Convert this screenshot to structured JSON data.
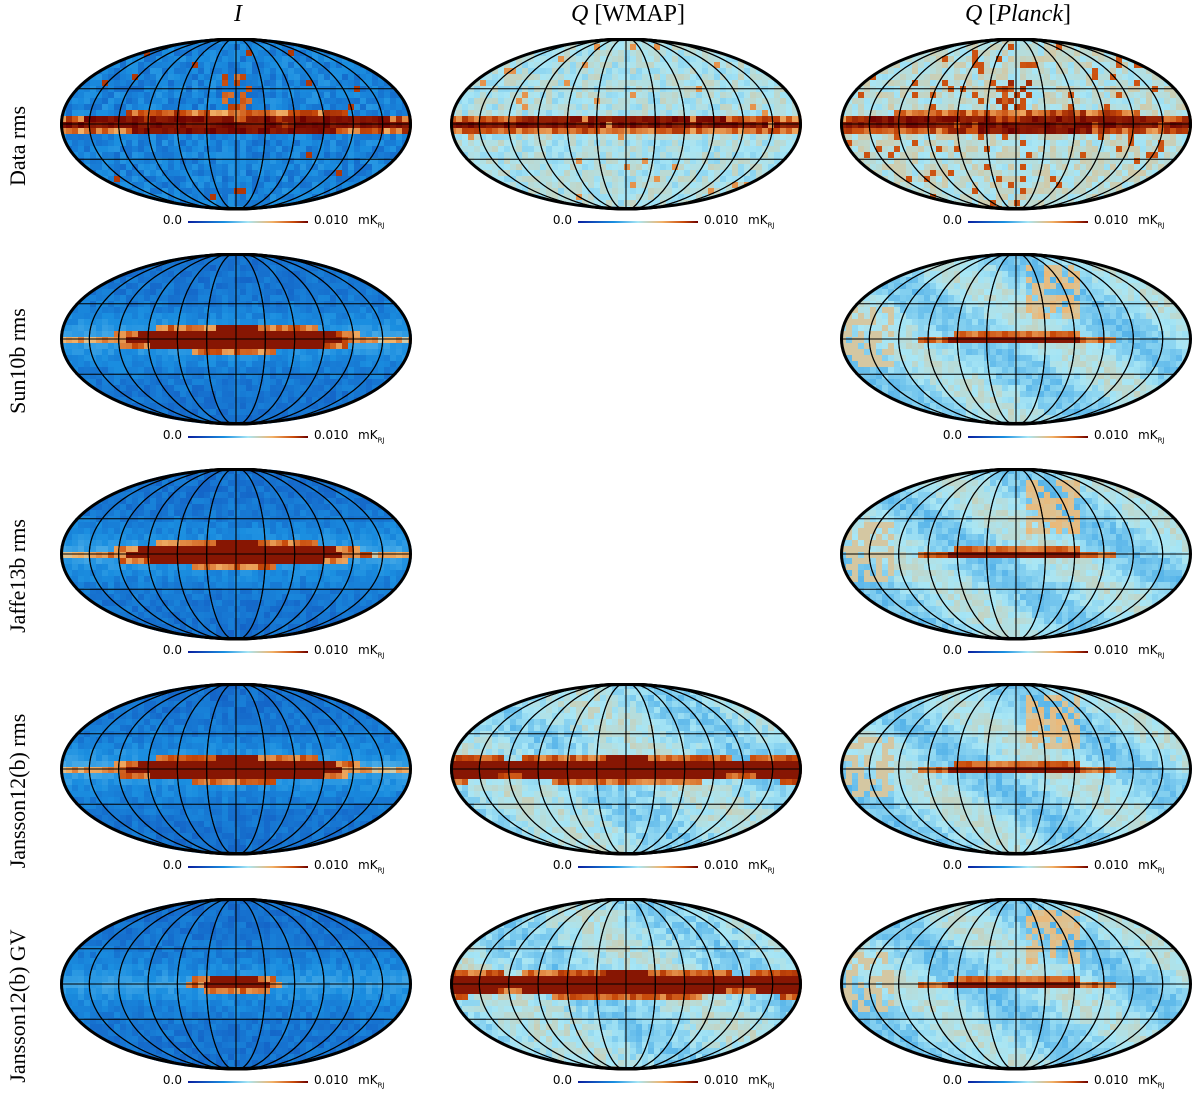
{
  "columns": [
    {
      "pre": "",
      "italic": "I",
      "post": ""
    },
    {
      "pre": "",
      "italic": "Q",
      "post": " [WMAP]"
    },
    {
      "pre": "",
      "italic": "Q",
      "post_a": " [",
      "italic2": "Planck",
      "post_b": "]"
    }
  ],
  "rows": [
    {
      "label": "Data rms"
    },
    {
      "label": "Sun10b rms"
    },
    {
      "label": "Jaffe13b rms"
    },
    {
      "label": "Jansson12(b) rms"
    },
    {
      "label": "Jansson12(b) GV"
    }
  ],
  "colorbar": {
    "min": "0.0",
    "max": "0.010",
    "unit": "mK",
    "unit_sub": "RJ"
  },
  "colormap": [
    "#0a1f9e",
    "#1a8ee0",
    "#a8e6f5",
    "#f2b36a",
    "#c84a0a",
    "#6b0000"
  ],
  "panels": [
    {
      "row": 0,
      "col": 0,
      "present": true,
      "style": "data_I"
    },
    {
      "row": 0,
      "col": 1,
      "present": true,
      "style": "data_QW"
    },
    {
      "row": 0,
      "col": 2,
      "present": true,
      "style": "data_QP"
    },
    {
      "row": 1,
      "col": 0,
      "present": true,
      "style": "model_I_broad"
    },
    {
      "row": 1,
      "col": 1,
      "present": false
    },
    {
      "row": 1,
      "col": 2,
      "present": true,
      "style": "model_QP"
    },
    {
      "row": 2,
      "col": 0,
      "present": true,
      "style": "model_I_broad"
    },
    {
      "row": 2,
      "col": 1,
      "present": false
    },
    {
      "row": 2,
      "col": 2,
      "present": true,
      "style": "model_QP"
    },
    {
      "row": 3,
      "col": 0,
      "present": true,
      "style": "model_I_broad"
    },
    {
      "row": 3,
      "col": 1,
      "present": true,
      "style": "model_QW_band"
    },
    {
      "row": 3,
      "col": 2,
      "present": true,
      "style": "model_QP"
    },
    {
      "row": 4,
      "col": 0,
      "present": true,
      "style": "model_I_small"
    },
    {
      "row": 4,
      "col": 1,
      "present": true,
      "style": "model_QW_band"
    },
    {
      "row": 4,
      "col": 2,
      "present": true,
      "style": "model_QP"
    }
  ]
}
